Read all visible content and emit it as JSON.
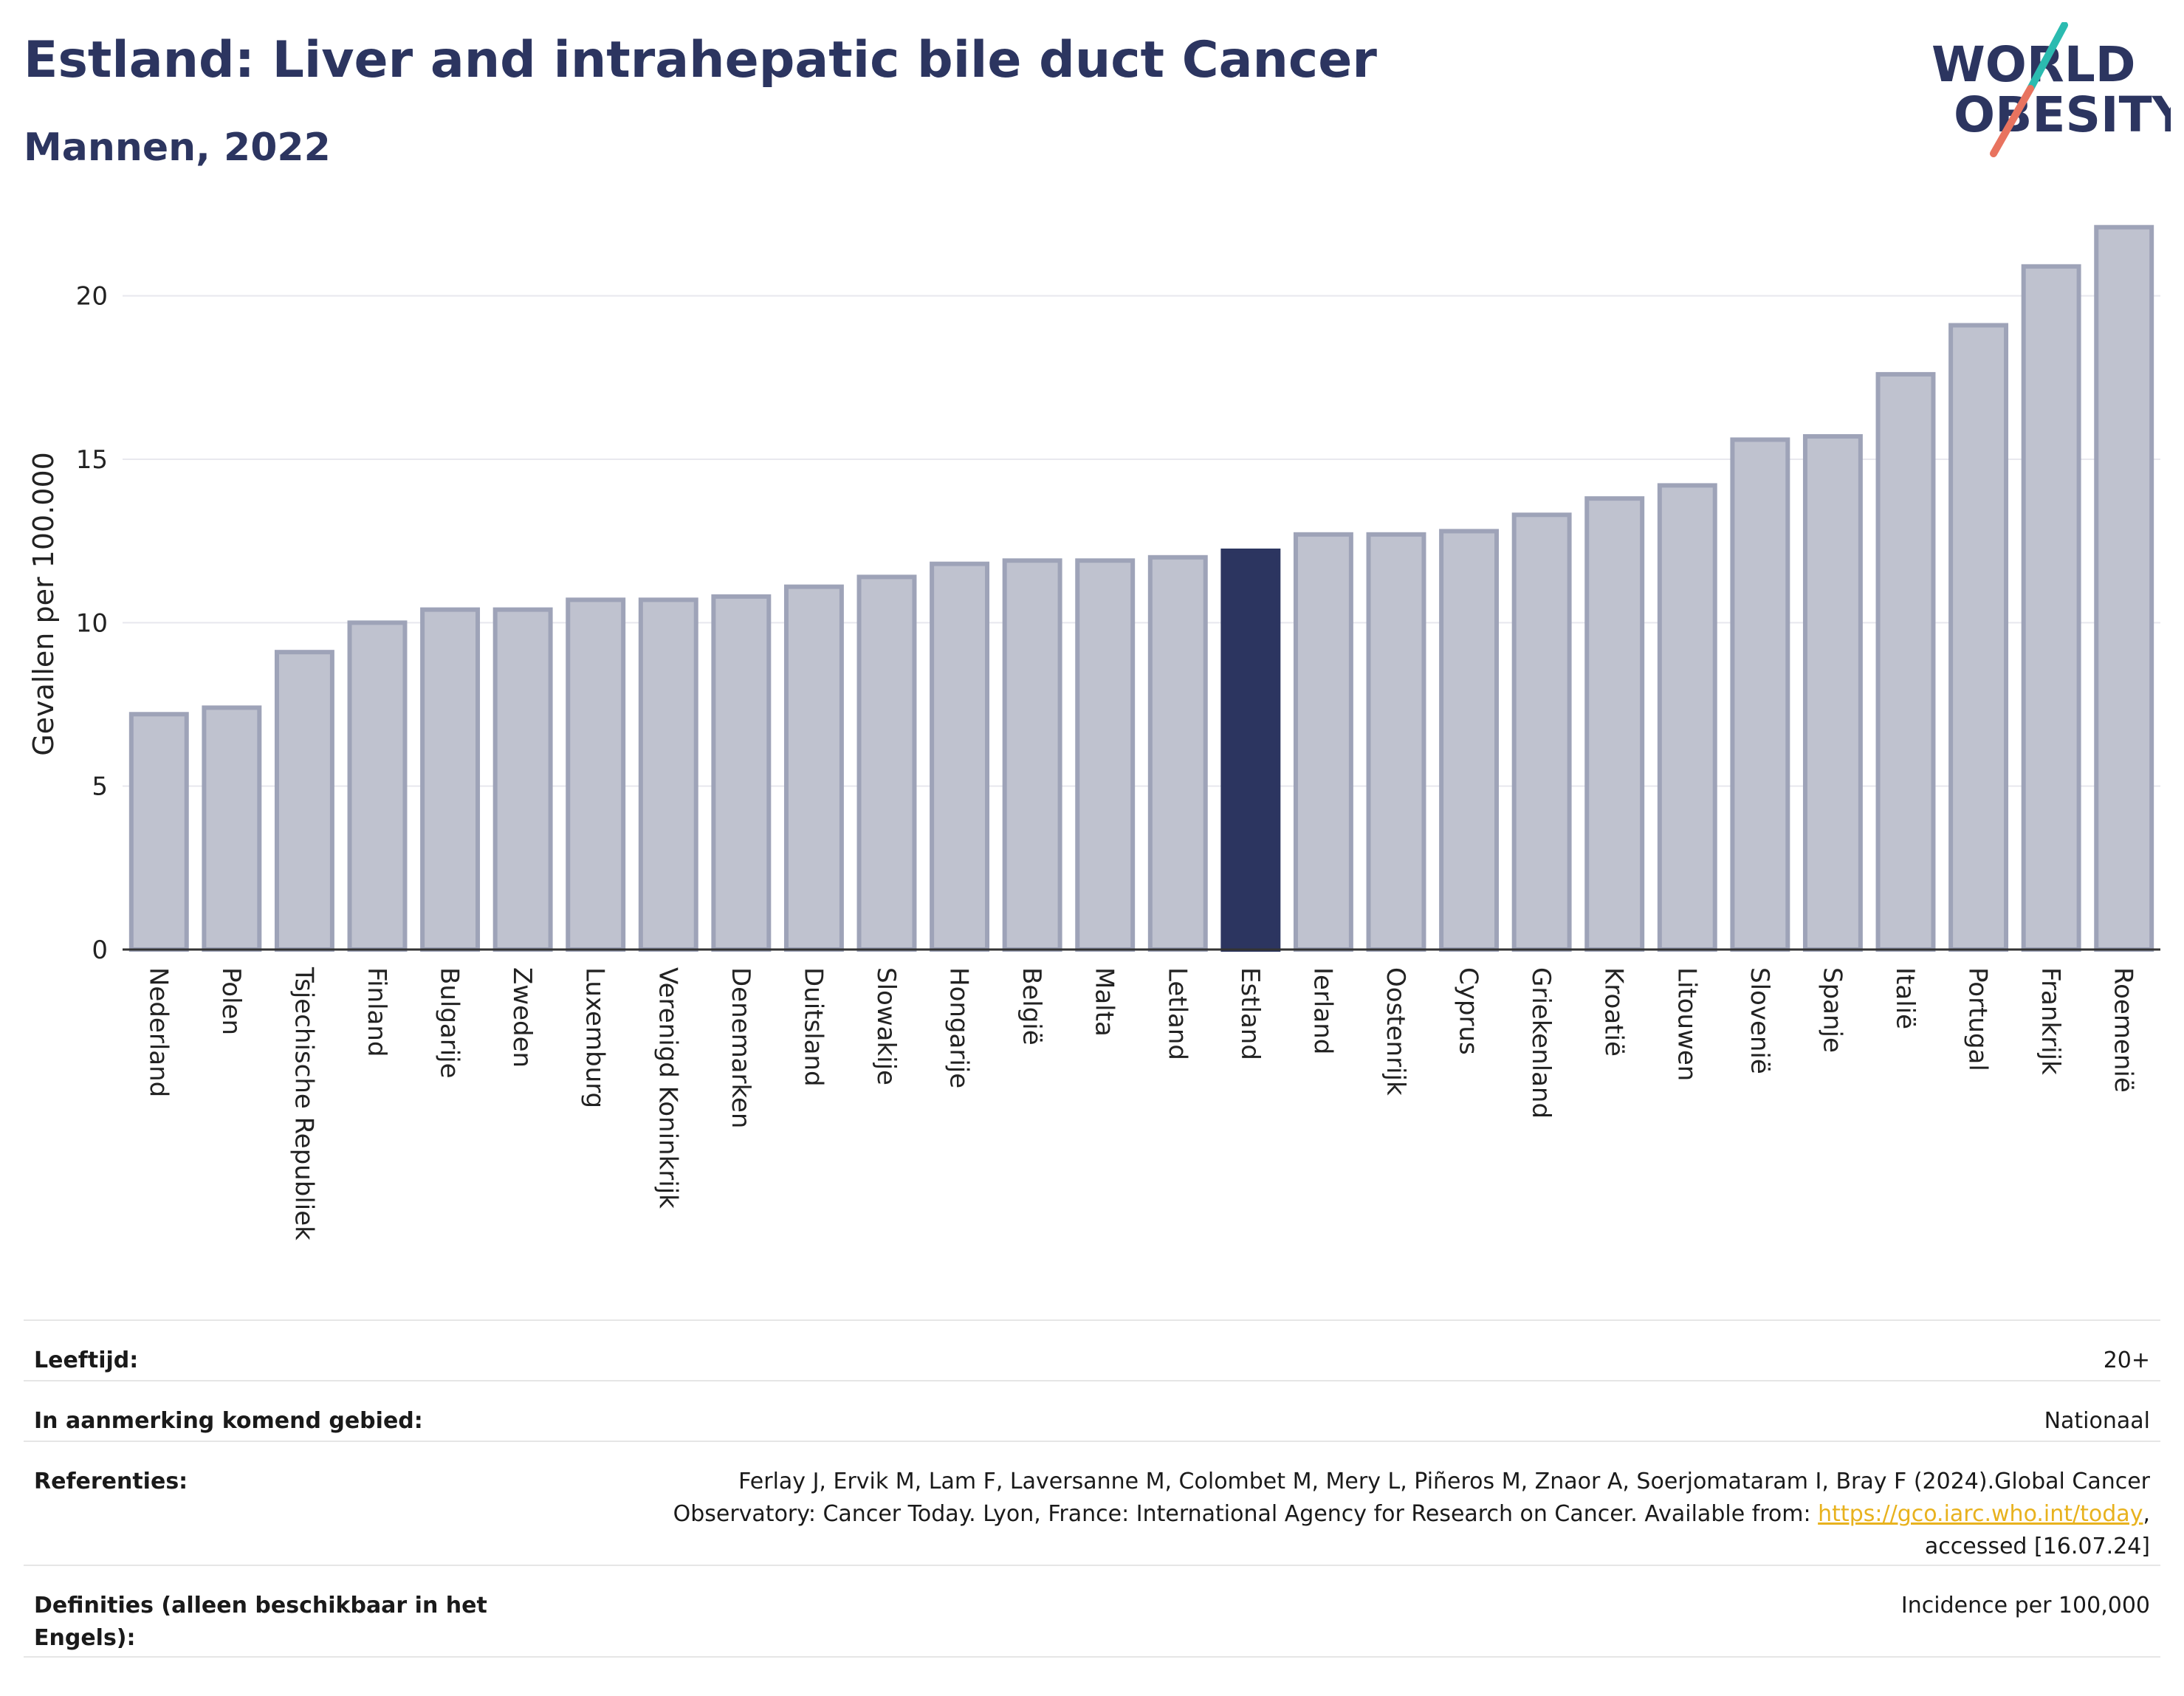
{
  "header": {
    "title": "Estland: Liver and intrahepatic bile duct Cancer",
    "subtitle": "Mannen, 2022"
  },
  "logo": {
    "line1": "WORLD",
    "line2": "OBESITY",
    "accent_teal": "#2bbbb0",
    "accent_coral": "#e8735f"
  },
  "colors": {
    "bar": "#bfc2cf",
    "bar_edge": "#9ea3b8",
    "highlight": "#2c3560",
    "grid": "#e8e8ee"
  },
  "chart_data": {
    "type": "bar",
    "ylabel": "Gevallen per 100.000",
    "ylim": [
      0,
      22.5
    ],
    "yticks": [
      0,
      5,
      10,
      15,
      20
    ],
    "highlight": "Estland",
    "categories": [
      "Nederland",
      "Polen",
      "Tsjechische Republiek",
      "Finland",
      "Bulgarije",
      "Zweden",
      "Luxemburg",
      "Verenigd Koninkrijk",
      "Denemarken",
      "Duitsland",
      "Slowakije",
      "Hongarije",
      "België",
      "Malta",
      "Letland",
      "Estland",
      "Ierland",
      "Oostenrijk",
      "Cyprus",
      "Griekenland",
      "Kroatië",
      "Litouwen",
      "Slovenië",
      "Spanje",
      "Italië",
      "Portugal",
      "Frankrijk",
      "Roemenië"
    ],
    "values": [
      7.2,
      7.4,
      9.1,
      10.0,
      10.4,
      10.4,
      10.7,
      10.7,
      10.8,
      11.1,
      11.4,
      11.8,
      11.9,
      11.9,
      12.0,
      12.2,
      12.7,
      12.7,
      12.8,
      13.3,
      13.8,
      14.2,
      15.6,
      15.7,
      17.6,
      19.1,
      20.9,
      22.1
    ]
  },
  "info": {
    "age_label": "Leeftijd:",
    "age_value": "20+",
    "area_label": "In aanmerking komend gebied:",
    "area_value": "Nationaal",
    "ref_label": "Referenties:",
    "ref_text1": "Ferlay J, Ervik M, Lam F, Laversanne M, Colombet M, Mery L, Piñeros M, Znaor A, Soerjomataram I, Bray F (2024).Global Cancer Observatory: Cancer Today. Lyon, France: International Agency for Research on Cancer. Available from: ",
    "ref_link": "https://gco.iarc.who.int/today",
    "ref_text2": ", accessed [16.07.24]",
    "def_label": "Definities (alleen beschikbaar in het Engels):",
    "def_value": "Incidence per 100,000"
  }
}
